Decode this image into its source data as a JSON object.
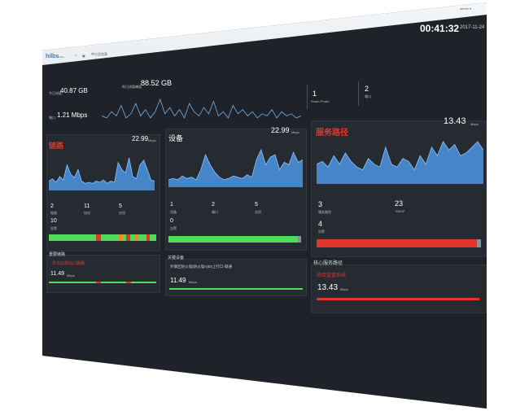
{
  "titlebar": {
    "logo": "hilbs",
    "logo_sub": "HaBao",
    "tab": "中小总览表",
    "user": "admin ▾"
  },
  "clock": {
    "time": "00:41:32",
    "date": "2017-11-24"
  },
  "stats": {
    "today_label": "今日流量",
    "today_value": "40.87 GB",
    "yesterday_label": "昨日流量峰值",
    "yesterday_value": "88.52 GB",
    "port_label": "端口",
    "port_value": "1.21 Mbps",
    "probe_value": "1",
    "probe_label": "Smart Probe",
    "port_count_value": "2",
    "port_count_label": "端口"
  },
  "panels": {
    "link": {
      "title": "链路",
      "value": "22.99",
      "unit": "Mbps",
      "counts": [
        {
          "v": "2",
          "l": "链路"
        },
        {
          "v": "11",
          "l": "协议"
        },
        {
          "v": "5",
          "l": "应用"
        }
      ],
      "alarm_value": "10",
      "alarm_label": "告警"
    },
    "device": {
      "title": "设备",
      "value": "22.99",
      "unit": "Mbps",
      "counts": [
        {
          "v": "1",
          "l": "设备"
        },
        {
          "v": "2",
          "l": "端口"
        },
        {
          "v": "5",
          "l": "应用"
        }
      ],
      "alarm_value": "0",
      "alarm_label": "告警"
    },
    "service": {
      "title": "服务路径",
      "value": "13.43",
      "unit": "Mbps",
      "counts": [
        {
          "v": "3",
          "l": "服务路径"
        },
        {
          "v": "23",
          "l": "SNOP"
        }
      ],
      "alarm_value": "4",
      "alarm_label": "告警"
    }
  },
  "bottom": {
    "link": {
      "title": "重要链路",
      "item": "本市总部出口链路",
      "value": "11.49",
      "unit": "Mbps"
    },
    "device": {
      "title": "关键设备",
      "item": "外联区防火墙(防火墙A)E0上行口-联通",
      "value": "11.49",
      "unit": "Mbps"
    },
    "service": {
      "title": "核心服务路径",
      "item": "综合监管系统",
      "value": "13.43",
      "unit": "Mbps"
    }
  },
  "colors": {
    "green": "#4fdc5c",
    "red": "#e2362c",
    "orange": "#f08a24",
    "blue": "#4a8fd8"
  },
  "series": {
    "traffic": [
      3,
      2,
      5,
      3,
      8,
      2,
      4,
      9,
      3,
      6,
      2,
      5,
      11,
      4,
      7,
      3,
      6,
      2,
      9,
      5,
      3,
      7,
      4,
      10,
      3,
      5,
      2,
      8,
      4,
      6,
      3,
      5,
      2,
      4,
      3,
      6,
      2,
      5,
      3,
      4,
      2,
      3
    ],
    "link": [
      8,
      10,
      7,
      12,
      9,
      22,
      14,
      11,
      18,
      8,
      6,
      7,
      6,
      8,
      7,
      9,
      6,
      8,
      7,
      24,
      18,
      15,
      28,
      12,
      10,
      22,
      26,
      18,
      9,
      8
    ],
    "device": [
      6,
      7,
      6,
      9,
      7,
      8,
      6,
      14,
      26,
      18,
      12,
      8,
      6,
      7,
      9,
      8,
      7,
      10,
      8,
      22,
      30,
      18,
      24,
      26,
      14,
      20,
      18,
      28,
      20,
      22
    ],
    "service": [
      14,
      16,
      12,
      20,
      14,
      22,
      16,
      12,
      10,
      18,
      14,
      12,
      26,
      14,
      12,
      18,
      16,
      10,
      20,
      14,
      26,
      20,
      30,
      24,
      28,
      20,
      22,
      26,
      30,
      24
    ]
  }
}
